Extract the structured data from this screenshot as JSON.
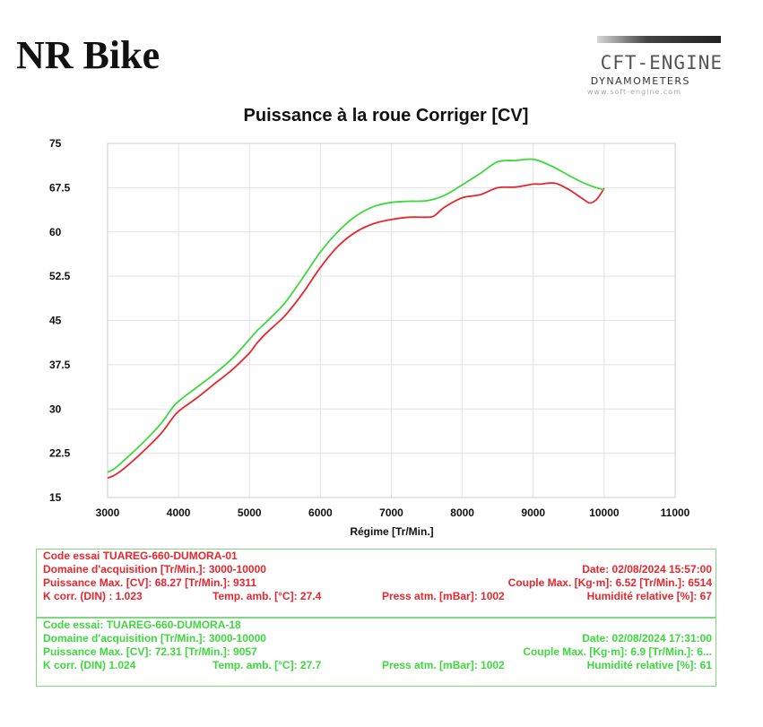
{
  "header": {
    "title": "NR Bike"
  },
  "logo": {
    "main": "CFT-ENGINE",
    "sub": "DYNAMOMETERS",
    "url": "www.soft-engine.com"
  },
  "chart_data": {
    "type": "line",
    "title": "Puissance à la roue Corriger [CV]",
    "xlabel": "Régime [Tr/Min.]",
    "ylabel": "",
    "xlim": [
      3000,
      11000
    ],
    "ylim": [
      15,
      75
    ],
    "xticks": [
      3000,
      4000,
      5000,
      6000,
      7000,
      8000,
      9000,
      10000,
      11000
    ],
    "yticks": [
      15,
      22.5,
      30,
      37.5,
      45,
      52.5,
      60,
      67.5,
      75
    ],
    "grid": true,
    "colors": {
      "red": "#e8262e",
      "green": "#3ed83e"
    },
    "series": [
      {
        "color": "#e8262e",
        "x": [
          3000,
          3100,
          3250,
          3500,
          3750,
          3900,
          4000,
          4250,
          4500,
          4750,
          5000,
          5100,
          5250,
          5500,
          5750,
          6000,
          6250,
          6500,
          6750,
          7000,
          7250,
          7500,
          7600,
          7750,
          8000,
          8250,
          8500,
          8750,
          9000,
          9100,
          9300,
          9500,
          9700,
          9800,
          9900,
          10000
        ],
        "values": [
          18.3,
          18.8,
          20.1,
          22.8,
          25.8,
          28.2,
          29.6,
          31.8,
          34.2,
          36.6,
          39.5,
          41.1,
          43.0,
          45.8,
          49.6,
          54.0,
          57.6,
          60.0,
          61.4,
          62.1,
          62.5,
          62.5,
          62.7,
          64.2,
          65.8,
          66.3,
          67.5,
          67.6,
          68.1,
          68.1,
          68.27,
          67.2,
          65.6,
          64.9,
          65.6,
          67.4
        ]
      },
      {
        "color": "#3ed83e",
        "x": [
          3000,
          3100,
          3250,
          3500,
          3750,
          3900,
          4000,
          4250,
          4500,
          4750,
          5000,
          5100,
          5250,
          5500,
          5750,
          6000,
          6250,
          6500,
          6750,
          7000,
          7250,
          7500,
          7750,
          8000,
          8250,
          8500,
          8750,
          9000,
          9250,
          9500,
          9750,
          10000
        ],
        "values": [
          19.3,
          19.9,
          21.5,
          24.3,
          27.5,
          30.0,
          31.3,
          33.6,
          35.9,
          38.5,
          41.8,
          43.2,
          44.9,
          48.0,
          52.2,
          56.6,
          60.1,
          62.7,
          64.3,
          65.0,
          65.2,
          65.3,
          66.2,
          68.0,
          69.9,
          71.9,
          72.1,
          72.31,
          71.2,
          69.6,
          68.1,
          67.1
        ]
      }
    ]
  },
  "runs": [
    {
      "code_essai": "Code essai  TUAREG-660-DUMORA-01",
      "domaine": "Domaine d'acquisition [Tr/Min.]: 3000-10000",
      "date": "Date: 02/08/2024   15:57:00",
      "puissance": "Puissance Max. [CV]: 68.27   [Tr/Min.]: 9311",
      "couple": "Couple Max. [Kg·m]: 6.52   [Tr/Min.]: 6514",
      "kcorr": "K corr. (DIN) : 1.023",
      "temp": "Temp. amb. [°C]: 27.4",
      "press": "Press atm. [mBar]: 1002",
      "humid": "Humidité relative [%]: 67"
    },
    {
      "code_essai": "Code essai: TUAREG-660-DUMORA-18",
      "domaine": "Domaine d'acquisition [Tr/Min.]: 3000-10000",
      "date": "Date: 02/08/2024   17:31:00",
      "puissance": "Puissance Max. [CV]: 72.31   [Tr/Min.]: 9057",
      "couple": "Couple Max. [Kg·m]: 6.9   [Tr/Min.]: 6...",
      "kcorr": "K corr. (DIN)  1.024",
      "temp": "Temp. amb. [°C]: 27.7",
      "press": "Press atm. [mBar]: 1002",
      "humid": "Humidité relative [%]: 61"
    }
  ]
}
